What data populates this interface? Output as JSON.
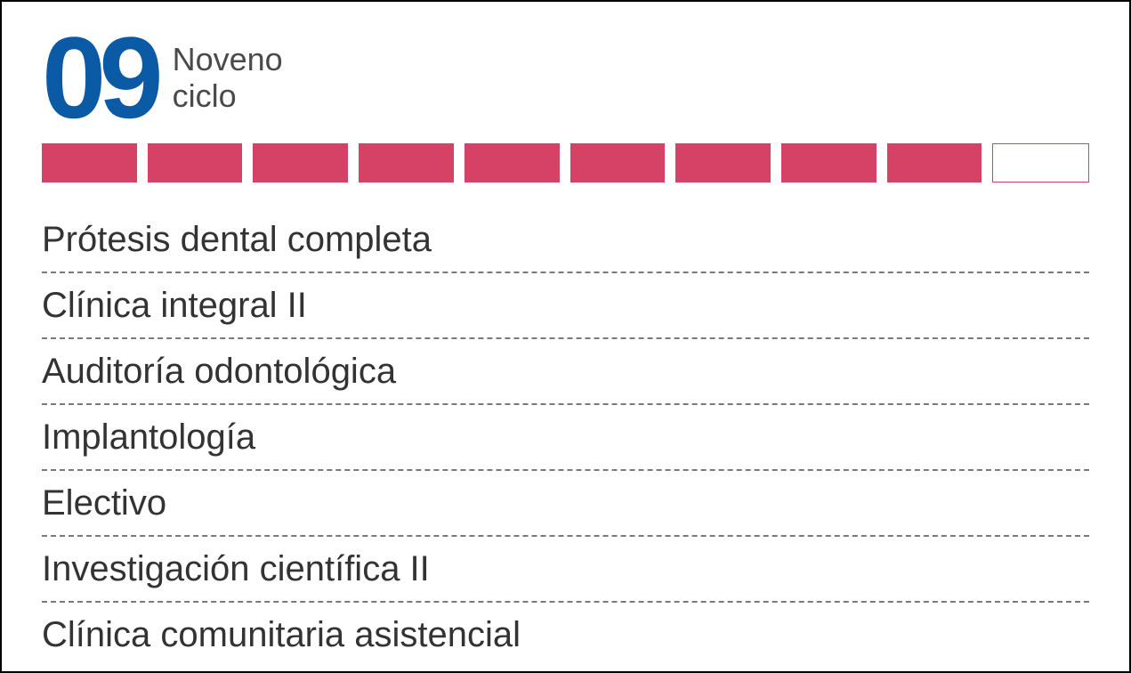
{
  "header": {
    "cycle_number": "09",
    "cycle_label_line1": "Noveno",
    "cycle_label_line2": "ciclo",
    "number_color": "#0a5aa6",
    "label_color": "#4a4a4a",
    "number_fontsize": 130,
    "label_fontsize": 36
  },
  "progress": {
    "total_segments": 10,
    "filled_segments": 9,
    "filled_color": "#d64265",
    "empty_border_color": "#d64265",
    "segment_height": 44
  },
  "courses": {
    "items": [
      "Prótesis dental completa",
      "Clínica integral II",
      "Auditoría odontológica",
      "Implantología",
      "Electivo",
      "Investigación científica II",
      "Clínica comunitaria asistencial"
    ],
    "text_color": "#333333",
    "divider_color": "#7a7a7a",
    "fontsize": 40
  },
  "card": {
    "border_color": "#000000",
    "background_color": "#ffffff"
  }
}
